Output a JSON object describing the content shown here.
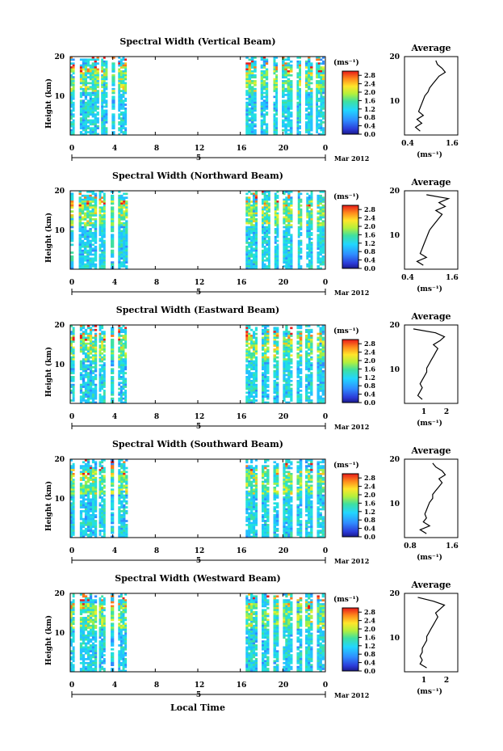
{
  "figure": {
    "x_axis_title": "Local Time",
    "date_label": "Mar 2012",
    "day_label": "5",
    "avg_title": "Average"
  },
  "panels": [
    {
      "title": "Spectral Width (Vertical Beam)"
    },
    {
      "title": "Spectral Width (Northward Beam)"
    },
    {
      "title": "Spectral Width (Eastward Beam)"
    },
    {
      "title": "Spectral Width (Southward Beam)"
    },
    {
      "title": "Spectral Width (Westward Beam)"
    }
  ],
  "chart_data": [
    {
      "type": "heatmap",
      "title": "Spectral Width (Vertical Beam)",
      "ylabel": "Height (km)",
      "x_ticks": [
        "0",
        "4",
        "8",
        "12",
        "16",
        "20",
        "0"
      ],
      "y_ticks": [
        "10",
        "20"
      ],
      "xlim": [
        0,
        24
      ],
      "ylim": [
        0,
        20
      ],
      "data_hours": [
        [
          0.0,
          0.4
        ],
        [
          0.9,
          2.7
        ],
        [
          2.9,
          3.5
        ],
        [
          3.9,
          4.2
        ],
        [
          4.5,
          5.3
        ],
        [
          16.5,
          17.5
        ],
        [
          17.9,
          18.6
        ],
        [
          19.1,
          19.5
        ],
        [
          19.9,
          20.9
        ],
        [
          21.3,
          21.7
        ],
        [
          22.1,
          22.8
        ],
        [
          23.1,
          23.9
        ]
      ],
      "colorbar": {
        "unit": "(ms⁻¹)",
        "ticks": [
          "0.0",
          "0.4",
          "0.8",
          "1.2",
          "1.6",
          "2.0",
          "2.4",
          "2.8"
        ],
        "range": [
          0,
          3.0
        ]
      }
    },
    {
      "type": "heatmap",
      "title": "Spectral Width (Northward Beam)",
      "ylabel": "Height (km)",
      "x_ticks": [
        "0",
        "4",
        "8",
        "12",
        "16",
        "20",
        "0"
      ],
      "y_ticks": [
        "10",
        "20"
      ],
      "xlim": [
        0,
        24
      ],
      "ylim": [
        0,
        20
      ],
      "data_hours": [
        [
          0.0,
          0.3
        ],
        [
          0.8,
          2.5
        ],
        [
          2.7,
          3.3
        ],
        [
          3.8,
          4.1
        ],
        [
          4.5,
          5.4
        ],
        [
          16.5,
          17.6
        ],
        [
          18.0,
          18.8
        ],
        [
          19.2,
          19.6
        ],
        [
          20.0,
          20.9
        ],
        [
          21.4,
          21.8
        ],
        [
          22.2,
          22.8
        ],
        [
          23.2,
          23.9
        ]
      ],
      "colorbar": {
        "unit": "(ms⁻¹)",
        "ticks": [
          "0.0",
          "0.4",
          "0.8",
          "1.2",
          "1.6",
          "2.0",
          "2.4",
          "2.8"
        ],
        "range": [
          0,
          3.0
        ]
      }
    },
    {
      "type": "heatmap",
      "title": "Spectral Width (Eastward Beam)",
      "ylabel": "Height (km)",
      "x_ticks": [
        "0",
        "4",
        "8",
        "12",
        "16",
        "20",
        "0"
      ],
      "y_ticks": [
        "10",
        "20"
      ],
      "xlim": [
        0,
        24
      ],
      "ylim": [
        0,
        20
      ],
      "data_hours": [
        [
          0.0,
          0.4
        ],
        [
          0.9,
          2.5
        ],
        [
          2.7,
          3.3
        ],
        [
          3.8,
          4.1
        ],
        [
          4.5,
          5.3
        ],
        [
          16.5,
          17.6
        ],
        [
          18.0,
          18.7
        ],
        [
          19.1,
          19.6
        ],
        [
          20.0,
          20.9
        ],
        [
          21.3,
          21.8
        ],
        [
          22.1,
          22.8
        ],
        [
          23.2,
          23.9
        ]
      ],
      "colorbar": {
        "unit": "(ms⁻¹)",
        "ticks": [
          "0.0",
          "0.4",
          "0.8",
          "1.2",
          "1.6",
          "2.0",
          "2.4",
          "2.8"
        ],
        "range": [
          0,
          3.0
        ]
      }
    },
    {
      "type": "heatmap",
      "title": "Spectral Width (Southward Beam)",
      "ylabel": "Height (km)",
      "x_ticks": [
        "0",
        "4",
        "8",
        "12",
        "16",
        "20",
        "0"
      ],
      "y_ticks": [
        "10",
        "20"
      ],
      "xlim": [
        0,
        24
      ],
      "ylim": [
        0,
        20
      ],
      "data_hours": [
        [
          0.0,
          0.4
        ],
        [
          0.9,
          2.5
        ],
        [
          2.7,
          3.3
        ],
        [
          3.8,
          4.1
        ],
        [
          4.5,
          5.4
        ],
        [
          16.5,
          17.6
        ],
        [
          18.0,
          18.7
        ],
        [
          19.1,
          19.6
        ],
        [
          20.0,
          20.9
        ],
        [
          21.3,
          21.8
        ],
        [
          22.1,
          22.8
        ],
        [
          23.2,
          23.9
        ]
      ],
      "colorbar": {
        "unit": "(ms⁻¹)",
        "ticks": [
          "0.0",
          "0.4",
          "0.8",
          "1.2",
          "1.6",
          "2.0",
          "2.4",
          "2.8"
        ],
        "range": [
          0,
          3.0
        ]
      }
    },
    {
      "type": "heatmap",
      "title": "Spectral Width (Westward Beam)",
      "ylabel": "Height (km)",
      "xlabel": "Local Time",
      "x_ticks": [
        "0",
        "4",
        "8",
        "12",
        "16",
        "20",
        "0"
      ],
      "y_ticks": [
        "10",
        "20"
      ],
      "xlim": [
        0,
        24
      ],
      "ylim": [
        0,
        20
      ],
      "data_hours": [
        [
          0.0,
          0.4
        ],
        [
          0.9,
          2.5
        ],
        [
          2.7,
          3.3
        ],
        [
          3.8,
          4.1
        ],
        [
          4.5,
          5.3
        ],
        [
          16.5,
          17.6
        ],
        [
          18.0,
          18.7
        ],
        [
          19.1,
          19.6
        ],
        [
          20.0,
          20.9
        ],
        [
          21.3,
          21.8
        ],
        [
          22.1,
          22.8
        ],
        [
          23.2,
          23.9
        ]
      ],
      "colorbar": {
        "unit": "(ms⁻¹)",
        "ticks": [
          "0.0",
          "0.4",
          "0.8",
          "1.2",
          "1.6",
          "2.0",
          "2.4",
          "2.8"
        ],
        "range": [
          0,
          3.0
        ]
      }
    },
    {
      "type": "line",
      "title": "Average",
      "xlabel": "(ms⁻¹)",
      "x_ticks": [
        "0.4",
        "1.6"
      ],
      "y_ticks": [
        "10",
        "20"
      ],
      "xlim": [
        0.2,
        1.9
      ],
      "ylim": [
        0,
        20
      ],
      "heights": [
        1,
        2,
        3,
        4,
        5,
        6,
        7,
        8,
        9,
        10,
        11,
        12,
        13,
        14,
        15,
        16,
        17,
        18,
        19
      ],
      "values": [
        0.7,
        0.55,
        0.75,
        0.6,
        0.8,
        0.65,
        0.7,
        0.75,
        0.8,
        0.85,
        0.95,
        1.0,
        1.1,
        1.2,
        1.3,
        1.5,
        1.4,
        1.25,
        1.2
      ]
    },
    {
      "type": "line",
      "title": "Average",
      "xlabel": "(ms⁻¹)",
      "x_ticks": [
        "0.4",
        "1.6"
      ],
      "y_ticks": [
        "10",
        "20"
      ],
      "xlim": [
        0.2,
        1.9
      ],
      "ylim": [
        0,
        20
      ],
      "heights": [
        1,
        2,
        3,
        4,
        5,
        6,
        7,
        8,
        9,
        10,
        11,
        12,
        13,
        14,
        15,
        16,
        17,
        18,
        19
      ],
      "values": [
        0.8,
        0.6,
        0.9,
        0.7,
        0.75,
        0.8,
        0.85,
        0.9,
        0.95,
        1.0,
        1.1,
        1.2,
        1.3,
        1.4,
        1.2,
        1.5,
        1.3,
        1.6,
        0.9
      ]
    },
    {
      "type": "line",
      "title": "Average",
      "xlabel": "(ms⁻¹)",
      "x_ticks": [
        "1",
        "2"
      ],
      "y_ticks": [
        "10",
        "20"
      ],
      "xlim": [
        0.2,
        2.6
      ],
      "ylim": [
        0,
        20
      ],
      "heights": [
        1,
        2,
        3,
        4,
        5,
        6,
        7,
        8,
        9,
        10,
        11,
        12,
        13,
        14,
        15,
        16,
        17,
        18,
        19
      ],
      "values": [
        1.0,
        0.8,
        0.9,
        1.0,
        0.9,
        1.0,
        1.1,
        1.2,
        1.2,
        1.3,
        1.4,
        1.5,
        1.6,
        1.7,
        1.5,
        1.8,
        2.0,
        1.6,
        0.6
      ]
    },
    {
      "type": "line",
      "title": "Average",
      "xlabel": "(ms⁻¹)",
      "x_ticks": [
        "0.8",
        "1.6"
      ],
      "y_ticks": [
        "10",
        "20"
      ],
      "xlim": [
        0.2,
        1.9
      ],
      "ylim": [
        0,
        20
      ],
      "heights": [
        1,
        2,
        3,
        4,
        5,
        6,
        7,
        8,
        9,
        10,
        11,
        12,
        13,
        14,
        15,
        16,
        17,
        18,
        19
      ],
      "values": [
        0.9,
        0.7,
        1.0,
        0.8,
        0.9,
        0.85,
        0.9,
        0.95,
        1.0,
        1.1,
        1.1,
        1.2,
        1.3,
        1.4,
        1.3,
        1.5,
        1.4,
        1.2,
        1.1
      ]
    },
    {
      "type": "line",
      "title": "Average",
      "xlabel": "(ms⁻¹)",
      "x_ticks": [
        "1",
        "2"
      ],
      "y_ticks": [
        "10",
        "20"
      ],
      "xlim": [
        0.2,
        2.6
      ],
      "ylim": [
        0,
        20
      ],
      "heights": [
        1,
        2,
        3,
        4,
        5,
        6,
        7,
        8,
        9,
        10,
        11,
        12,
        13,
        14,
        15,
        16,
        17,
        18,
        19
      ],
      "values": [
        1.2,
        0.9,
        1.0,
        0.9,
        1.0,
        1.0,
        1.1,
        1.2,
        1.2,
        1.3,
        1.4,
        1.5,
        1.6,
        1.7,
        1.6,
        1.8,
        2.0,
        1.5,
        0.8
      ]
    }
  ]
}
